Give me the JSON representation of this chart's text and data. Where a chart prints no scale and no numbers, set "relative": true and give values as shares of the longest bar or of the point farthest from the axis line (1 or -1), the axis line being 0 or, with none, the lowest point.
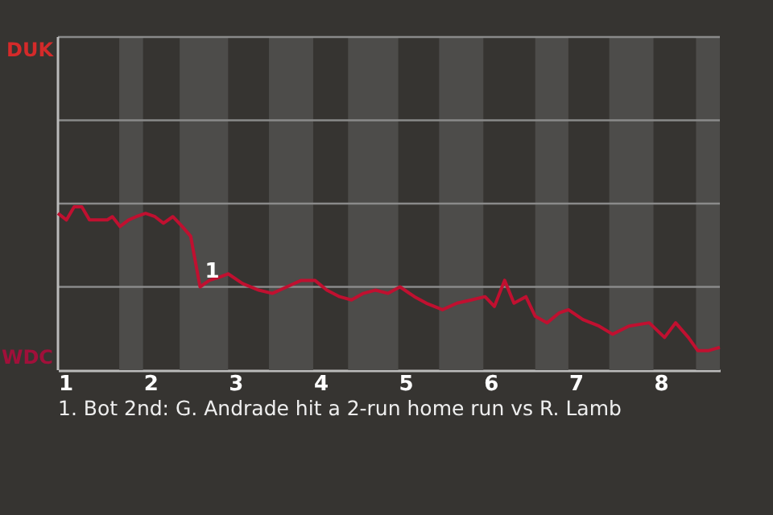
{
  "chart_data": {
    "type": "line",
    "relative": true,
    "x": [
      1.0,
      1.1,
      1.19,
      1.28,
      1.37,
      1.47,
      1.58,
      1.64,
      1.73,
      1.83,
      1.92,
      2.03,
      2.14,
      2.24,
      2.35,
      2.46,
      2.56,
      2.67,
      2.78,
      2.9,
      3.0,
      3.17,
      3.36,
      3.52,
      3.69,
      3.86,
      4.02,
      4.16,
      4.31,
      4.45,
      4.59,
      4.73,
      4.88,
      5.02,
      5.19,
      5.33,
      5.52,
      5.69,
      5.86,
      6.02,
      6.13,
      6.25,
      6.36,
      6.5,
      6.61,
      6.75,
      6.89,
      7.0,
      7.17,
      7.36,
      7.52,
      7.71,
      7.95,
      8.13,
      8.26,
      8.41,
      8.52,
      8.65,
      8.78
    ],
    "series": [
      {
        "color": "#c01030",
        "values": [
          0.96,
          0.92,
          1,
          1,
          0.92,
          0.92,
          0.92,
          0.94,
          0.88,
          0.92,
          0.94,
          0.96,
          0.94,
          0.9,
          0.94,
          0.88,
          0.82,
          0.51,
          0.55,
          0.57,
          0.59,
          0.53,
          0.49,
          0.47,
          0.51,
          0.55,
          0.55,
          0.49,
          0.45,
          0.43,
          0.47,
          0.49,
          0.47,
          0.51,
          0.45,
          0.41,
          0.37,
          0.41,
          0.43,
          0.45,
          0.39,
          0.55,
          0.41,
          0.45,
          0.33,
          0.29,
          0.35,
          0.37,
          0.31,
          0.27,
          0.22,
          0.27,
          0.29,
          0.2,
          0.29,
          0.2,
          0.12,
          0.12,
          0.14
        ]
      }
    ],
    "xlim": [
      1,
      8.78
    ],
    "xticks": [
      1,
      2,
      3,
      4,
      5,
      6,
      7,
      8
    ],
    "ref_lines": [
      {
        "axis": "y",
        "value": 0.51,
        "color": "#8a8a8a"
      },
      {
        "axis": "y",
        "value": 1.02,
        "color": "#8a8a8a"
      },
      {
        "axis": "y",
        "value": 1.53,
        "color": "#8a8a8a"
      },
      {
        "axis": "y",
        "value": 2.04,
        "color": "#8a8a8a"
      }
    ],
    "line_style": "solid",
    "marker": "none",
    "bands": [
      {
        "axis": "x",
        "from": 1.72,
        "to": 2.0,
        "color": "#4d4c4a"
      },
      {
        "axis": "x",
        "from": 2.43,
        "to": 3.0,
        "color": "#4d4c4a"
      },
      {
        "axis": "x",
        "from": 3.48,
        "to": 4.0,
        "color": "#4d4c4a"
      },
      {
        "axis": "x",
        "from": 4.41,
        "to": 5.0,
        "color": "#4d4c4a"
      },
      {
        "axis": "x",
        "from": 5.48,
        "to": 6.0,
        "color": "#4d4c4a"
      },
      {
        "axis": "x",
        "from": 6.61,
        "to": 7.0,
        "color": "#4d4c4a"
      },
      {
        "axis": "x",
        "from": 7.48,
        "to": 8.0,
        "color": "#4d4c4a"
      },
      {
        "axis": "x",
        "from": 8.5,
        "to": 8.78,
        "color": "#4d4c4a"
      }
    ],
    "annotations": [
      "DUK",
      "WDC",
      {
        "text": "1",
        "x": 2.67,
        "y": 0.51
      },
      "1. Bot 2nd: G. Andrade hit a 2-run home run vs R. Lamb"
    ]
  }
}
